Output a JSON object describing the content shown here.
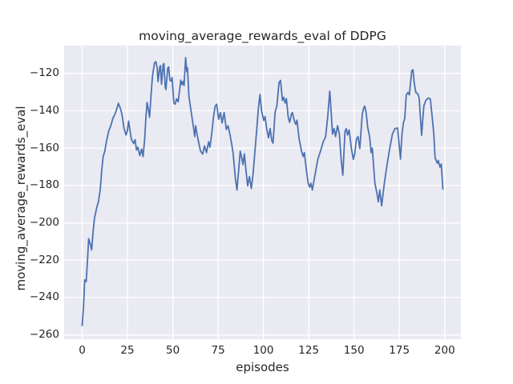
{
  "chart_data": {
    "type": "line",
    "title": "moving_average_rewards_eval of DDPG",
    "xlabel": "episodes",
    "ylabel": "moving_average_rewards_eval",
    "grid": true,
    "legend_visible": false,
    "xlim": [
      -9.95,
      208.95
    ],
    "ylim": [
      -262.3,
      -105.1
    ],
    "xticks": [
      0,
      25,
      50,
      75,
      100,
      125,
      150,
      175,
      200
    ],
    "xtick_labels": [
      "0",
      "25",
      "50",
      "75",
      "100",
      "125",
      "150",
      "175",
      "200"
    ],
    "yticks": [
      -120,
      -140,
      -160,
      -180,
      -200,
      -220,
      -240,
      -260
    ],
    "ytick_labels": [
      "−120",
      "−140",
      "−160",
      "−180",
      "−200",
      "−220",
      "−240",
      "−260"
    ],
    "colors": {
      "line": "#4c72b0",
      "axes_background": "#eaeaf2",
      "grid": "#ffffff",
      "text": "#262626",
      "figure_background": "#ffffff"
    },
    "series": [
      {
        "name": "moving_average_rewards_eval",
        "x": [
          0,
          0.8,
          1.4,
          2.2,
          3,
          3.6,
          4.4,
          5.2,
          6,
          6.8,
          8,
          9,
          10,
          10.8,
          11.6,
          12.5,
          13.5,
          14.6,
          15.8,
          17,
          18.2,
          19.1,
          20,
          21,
          21.9,
          23,
          24.2,
          25,
          25.6,
          26.4,
          27.1,
          27.8,
          28.4,
          29.2,
          30,
          30.8,
          31.8,
          32.8,
          33.6,
          34.5,
          35.2,
          35.8,
          36.5,
          37.2,
          38.1,
          38.8,
          39.9,
          40.7,
          41.4,
          41.9,
          42.8,
          43.2,
          43.8,
          44.7,
          45.1,
          45.8,
          46.2,
          47.2,
          47.7,
          48.4,
          49.1,
          49.6,
          50.6,
          51.3,
          52.1,
          53,
          53.7,
          54.4,
          55,
          55.6,
          56.2,
          57.1,
          57.7,
          58.1,
          58.9,
          60.4,
          61.5,
          62.1,
          62.6,
          63.3,
          63.9,
          65.3,
          66.5,
          67.5,
          68.6,
          69.8,
          70.5,
          71.5,
          72.5,
          73.4,
          74.2,
          75.3,
          76.3,
          77.2,
          78.3,
          79.5,
          80.5,
          81.5,
          82.5,
          83.3,
          84.5,
          85.4,
          86.5,
          87.2,
          88,
          88.7,
          89.5,
          90.5,
          91.3,
          92.3,
          93.3,
          94.3,
          95.3,
          96.3,
          97.2,
          98.1,
          99,
          100.2,
          100.9,
          101.8,
          102.8,
          103.7,
          104.6,
          105.3,
          106.5,
          107.4,
          108.6,
          109.4,
          110.5,
          111.2,
          112,
          112.7,
          113.7,
          114.5,
          115.5,
          116,
          117,
          117.8,
          118.5,
          119.6,
          121,
          121.9,
          122.6,
          123.7,
          124.7,
          125.5,
          126.2,
          127,
          128.4,
          130,
          131.5,
          133,
          134.3,
          135.5,
          136.6,
          137.4,
          138.1,
          139,
          139.8,
          140.9,
          141.9,
          142.9,
          143.8,
          145,
          145.7,
          146.4,
          147.3,
          148.5,
          149.6,
          150.4,
          151.3,
          152.2,
          153.2,
          154.5,
          155.3,
          155.9,
          156.7,
          157.5,
          158.6,
          159.4,
          160.1,
          161.5,
          162.7,
          163.4,
          164.2,
          165.2,
          166.7,
          168.2,
          169.7,
          171.2,
          172.6,
          174,
          174.8,
          175.6,
          176.5,
          177.3,
          178,
          178.8,
          179.7,
          180.5,
          181.8,
          182.5,
          183.2,
          184.1,
          185.2,
          185.9,
          187.3,
          188.5,
          189.6,
          191,
          192.1,
          193.3,
          194,
          194.7,
          195.9,
          196.5,
          197.4,
          198.1,
          199
        ],
        "y": [
          -255,
          -244,
          -230.5,
          -231.5,
          -219,
          -208.5,
          -211,
          -214.5,
          -205,
          -197.5,
          -192,
          -188.5,
          -182,
          -172,
          -164.5,
          -161.5,
          -156,
          -151,
          -148,
          -144,
          -141.5,
          -139,
          -136,
          -138.5,
          -141.5,
          -149,
          -153,
          -150.5,
          -145.5,
          -150.5,
          -155,
          -156.5,
          -157.5,
          -155.5,
          -161,
          -159.5,
          -164,
          -160.5,
          -164.5,
          -155,
          -143,
          -135.5,
          -139,
          -143.5,
          -130,
          -121.5,
          -114.4,
          -113.7,
          -117.2,
          -124.4,
          -116.5,
          -115.8,
          -125.8,
          -115.1,
          -114.7,
          -127.2,
          -128.6,
          -117.2,
          -116.5,
          -123.6,
          -124.1,
          -122.2,
          -135.8,
          -136.5,
          -133.6,
          -135.2,
          -129.5,
          -123.6,
          -126,
          -124.3,
          -126.5,
          -111.5,
          -119,
          -117,
          -132.3,
          -142.3,
          -149.5,
          -153.8,
          -148,
          -152,
          -155.2,
          -161.6,
          -163.2,
          -158.8,
          -162.4,
          -156.6,
          -159.5,
          -152,
          -143,
          -137.5,
          -136.5,
          -144.5,
          -141,
          -146.5,
          -140.9,
          -150,
          -148,
          -152.5,
          -158,
          -163,
          -176,
          -182.4,
          -170,
          -161.6,
          -165,
          -168.8,
          -163.1,
          -173,
          -180.2,
          -175.2,
          -181.6,
          -174,
          -162,
          -150,
          -139,
          -131.3,
          -140.2,
          -145.2,
          -143.1,
          -149.5,
          -154.5,
          -149.5,
          -155.9,
          -157.3,
          -140.5,
          -137.3,
          -125,
          -123.7,
          -134.5,
          -132.8,
          -135.9,
          -133.5,
          -143.5,
          -146.2,
          -141.6,
          -140.9,
          -145.2,
          -147.3,
          -145,
          -154.5,
          -161.6,
          -164.5,
          -162.4,
          -171.6,
          -178.8,
          -180.9,
          -178.8,
          -182.4,
          -174.5,
          -166,
          -161.5,
          -156.5,
          -154,
          -143,
          -129.5,
          -141,
          -152.5,
          -149.5,
          -153.8,
          -148,
          -152.5,
          -166,
          -174.5,
          -151,
          -149.5,
          -153,
          -150.3,
          -160,
          -166,
          -163,
          -155.2,
          -153.8,
          -160.2,
          -142,
          -138.5,
          -137.5,
          -141,
          -148.8,
          -153.8,
          -162.4,
          -160,
          -178.8,
          -184.5,
          -188.8,
          -182.4,
          -190.9,
          -178.8,
          -168.8,
          -160.2,
          -152.4,
          -149.5,
          -149.2,
          -157,
          -165.9,
          -152,
          -146.2,
          -144,
          -131.6,
          -130.2,
          -131.5,
          -118.7,
          -118,
          -125.2,
          -130.2,
          -130.9,
          -133.1,
          -153.1,
          -137.3,
          -134.5,
          -133.1,
          -133.8,
          -145.2,
          -152.4,
          -165.2,
          -168.1,
          -166.6,
          -170.2,
          -168.5,
          -182
        ]
      }
    ]
  }
}
